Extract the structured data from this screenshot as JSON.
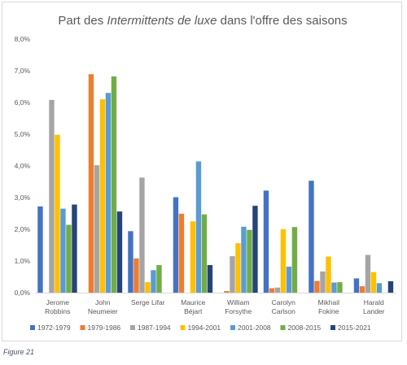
{
  "chart_data": {
    "type": "bar",
    "title_parts": [
      "Part des ",
      "Intermittents de luxe",
      " dans l'offre des saisons"
    ],
    "categories": [
      [
        "Jerome",
        "Robbins"
      ],
      [
        "John",
        "Neumeier"
      ],
      [
        "Serge Lifar"
      ],
      [
        "Maurice",
        "Béjart"
      ],
      [
        "William",
        "Forsythe"
      ],
      [
        "Carolyn",
        "Carlson"
      ],
      [
        "Mikhail",
        "Fokine"
      ],
      [
        "Harald",
        "Lander"
      ]
    ],
    "series": [
      {
        "name": "1972-1979",
        "color": "#4472c4",
        "values": [
          2.72,
          0,
          1.94,
          3.01,
          0,
          3.22,
          3.53,
          0.45
        ]
      },
      {
        "name": "1979-1986",
        "color": "#ed7d31",
        "values": [
          0,
          6.89,
          1.08,
          2.49,
          0.05,
          0.14,
          0.37,
          0.2
        ]
      },
      {
        "name": "1987-1994",
        "color": "#a5a5a5",
        "values": [
          6.08,
          4.02,
          3.63,
          0,
          1.15,
          0.16,
          0.67,
          1.19
        ]
      },
      {
        "name": "1994-2001",
        "color": "#ffc000",
        "values": [
          4.98,
          6.1,
          0.33,
          2.25,
          1.56,
          2.0,
          1.14,
          0.65
        ]
      },
      {
        "name": "2001-2008",
        "color": "#5b9bd5",
        "values": [
          2.65,
          6.3,
          0.71,
          4.14,
          2.08,
          0.82,
          0.32,
          0.3
        ]
      },
      {
        "name": "2008-2015",
        "color": "#70ad47",
        "values": [
          2.14,
          6.82,
          0.87,
          2.47,
          1.98,
          2.07,
          0.33,
          0
        ]
      },
      {
        "name": "2015-2021",
        "color": "#264478",
        "values": [
          2.78,
          2.56,
          0,
          0.87,
          2.74,
          0,
          0,
          0.36
        ]
      }
    ],
    "y_ticks": [
      "0,0%",
      "1,0%",
      "2,0%",
      "3,0%",
      "4,0%",
      "5,0%",
      "6,0%",
      "7,0%",
      "8,0%"
    ],
    "ylim": [
      0,
      8
    ],
    "grid": false,
    "legend_position": "bottom"
  },
  "caption": "Figure 21"
}
